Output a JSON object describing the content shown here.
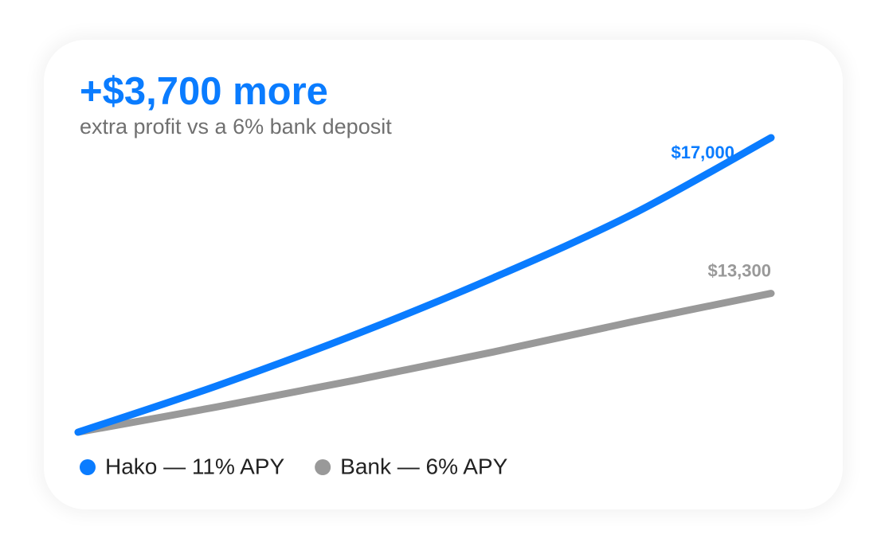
{
  "chart_data": {
    "type": "line",
    "title": "+$3,700 more",
    "subtitle": "extra profit vs a 6% bank deposit",
    "categories": [
      null,
      null,
      null,
      null,
      null,
      null
    ],
    "series": [
      {
        "name": "Hako — 11% APY",
        "color": "#0a7cff",
        "values": [
          10000,
          11100,
          12321,
          13676,
          15181,
          17000
        ],
        "value_labels": [
          null,
          null,
          null,
          null,
          null,
          "$17,000"
        ]
      },
      {
        "name": "Bank — 6% APY",
        "color": "#999999",
        "values": [
          10000,
          10600,
          11236,
          11910,
          12625,
          13300
        ],
        "value_labels": [
          null,
          null,
          null,
          null,
          null,
          "$13,300"
        ]
      }
    ],
    "grid": false
  }
}
